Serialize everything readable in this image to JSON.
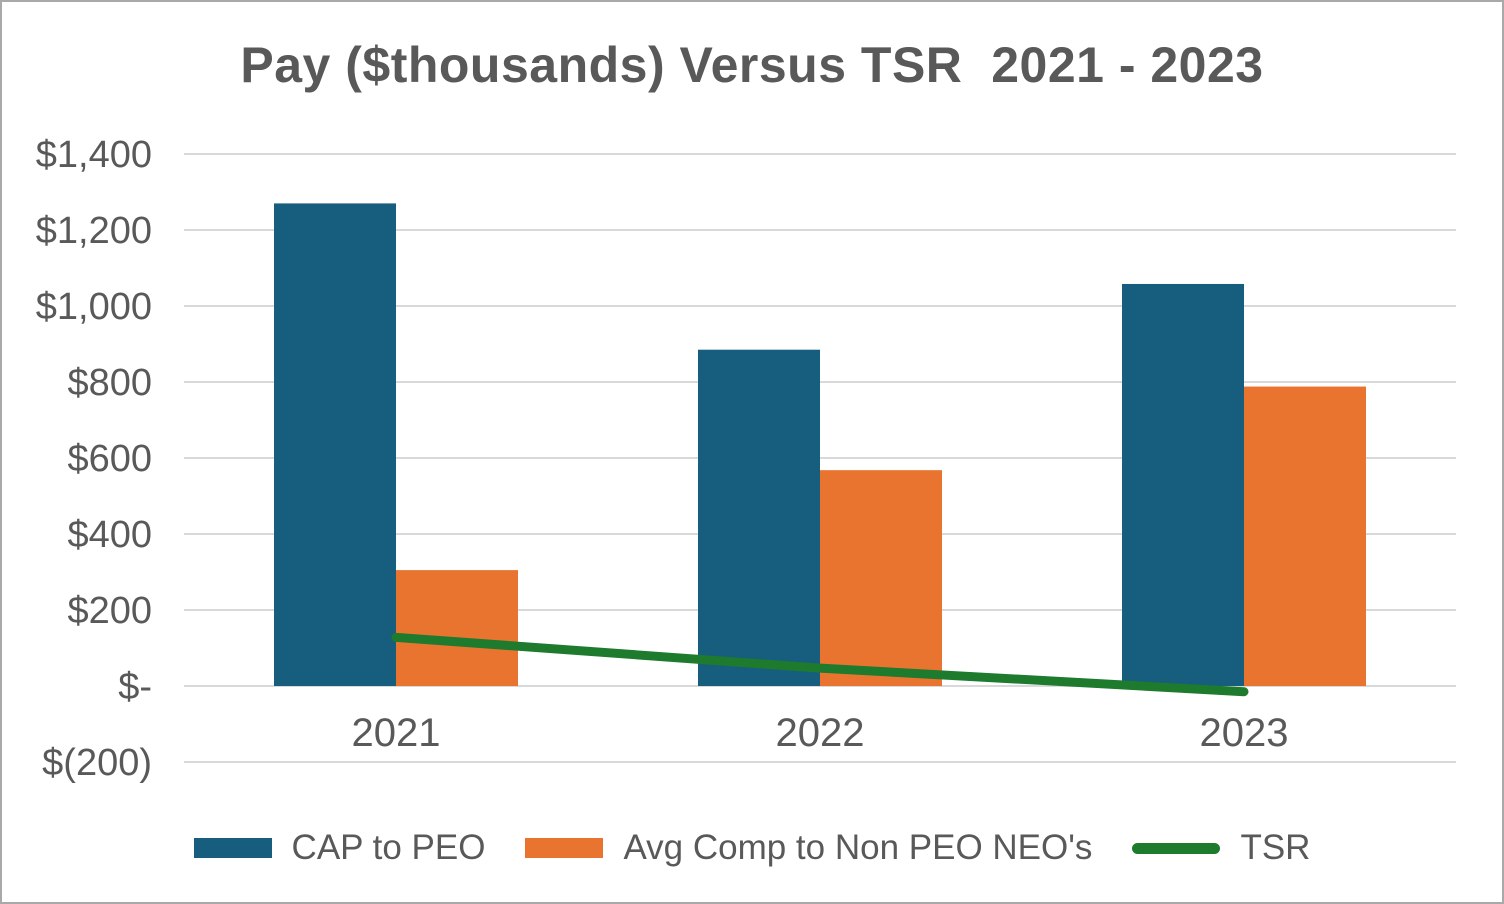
{
  "title": "Pay ($thousands) Versus TSR  2021 - 2023",
  "colors": {
    "cap_to_peo": "#175e7e",
    "avg_comp": "#e8742f",
    "tsr": "#1e7a2d",
    "gridline": "#d9d9d9",
    "text": "#595959",
    "frame_border": "#a9a9a9",
    "background": "#ffffff"
  },
  "chart_data": {
    "type": "bar",
    "subtype": "grouped bars with overlaid line series",
    "title": "Pay ($thousands) Versus TSR  2021 - 2023",
    "categories": [
      "2021",
      "2022",
      "2023"
    ],
    "series": [
      {
        "name": "CAP to PEO",
        "type": "bar",
        "color_key": "cap_to_peo",
        "values": [
          1270,
          885,
          1058
        ]
      },
      {
        "name": "Avg Comp to Non PEO NEO's",
        "type": "bar",
        "color_key": "avg_comp",
        "values": [
          305,
          568,
          788
        ]
      },
      {
        "name": "TSR",
        "type": "line",
        "color_key": "tsr",
        "values": [
          128,
          47,
          -15
        ]
      }
    ],
    "xlabel": "",
    "ylabel": "",
    "y_axis": {
      "min": -200,
      "max": 1400,
      "step": 200,
      "tick_values": [
        1400,
        1200,
        1000,
        800,
        600,
        400,
        200,
        0,
        -200
      ],
      "tick_labels": [
        "$1,400",
        "$1,200",
        "$1,000",
        "$800",
        "$600",
        "$400",
        "$200",
        "$-",
        "$(200)"
      ]
    },
    "grid": true,
    "legend_position": "bottom"
  },
  "legend": {
    "items": [
      {
        "label": "CAP to PEO",
        "swatch": "bar",
        "color_key": "cap_to_peo"
      },
      {
        "label": "Avg Comp to Non PEO NEO's",
        "swatch": "bar",
        "color_key": "avg_comp"
      },
      {
        "label": "TSR",
        "swatch": "line",
        "color_key": "tsr"
      }
    ]
  }
}
